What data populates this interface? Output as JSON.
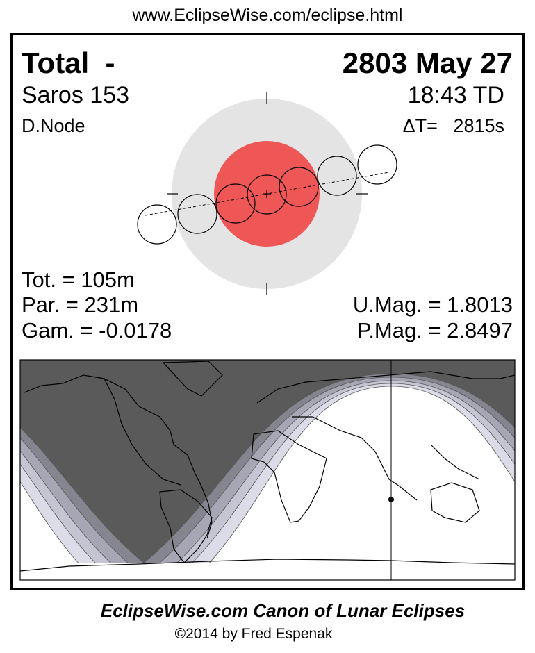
{
  "header": {
    "url": "www.EclipseWise.com/eclipse.html"
  },
  "eclipse": {
    "type": "Total  -",
    "date": "2803 May 27",
    "saros": "Saros 153",
    "time": "18:43 TD",
    "node": "D.Node",
    "delta_t": "ΔT=   2815s"
  },
  "stats": {
    "tot": "Tot. = 105m",
    "par": "Par. = 231m",
    "gam": "Gam. = -0.0178",
    "umag": "U.Mag. = 1.8013",
    "pmag": "P.Mag. = 2.8497"
  },
  "colors": {
    "penumbra": "#e4e4e4",
    "umbra": "#ef5656",
    "night": "#5a5a5a",
    "bands": [
      "#85858f",
      "#a6a6b4",
      "#c4c4d2",
      "#dcdce8"
    ]
  },
  "footer": {
    "title": "EclipseWise.com Canon of Lunar Eclipses",
    "copyright": "©2014 by Fred Espenak"
  }
}
